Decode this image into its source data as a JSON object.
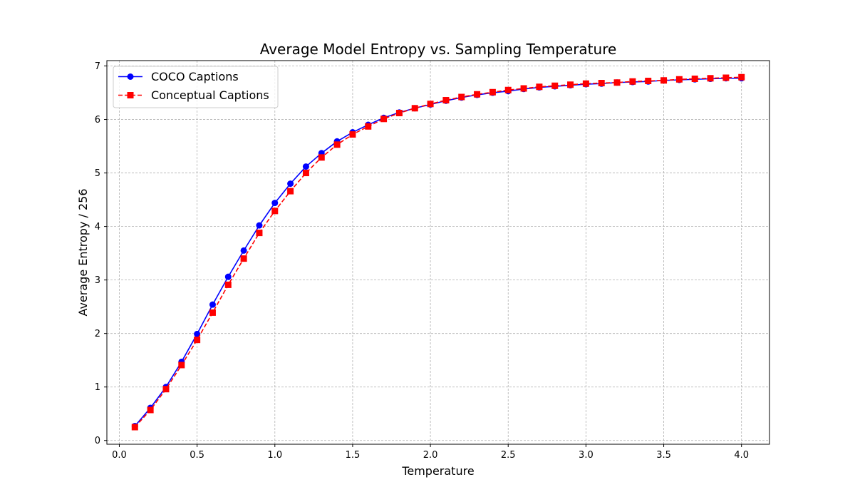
{
  "chart_data": {
    "type": "line",
    "title": "Average Model Entropy vs. Sampling Temperature",
    "xlabel": "Temperature",
    "ylabel": "Average Entropy / 256",
    "xlim": [
      -0.08,
      4.18
    ],
    "ylim": [
      -0.07,
      7.1
    ],
    "xticks": [
      0.0,
      0.5,
      1.0,
      1.5,
      2.0,
      2.5,
      3.0,
      3.5,
      4.0
    ],
    "xtick_labels": [
      "0.0",
      "0.5",
      "1.0",
      "1.5",
      "2.0",
      "2.5",
      "3.0",
      "3.5",
      "4.0"
    ],
    "yticks": [
      0,
      1,
      2,
      3,
      4,
      5,
      6,
      7
    ],
    "ytick_labels": [
      "0",
      "1",
      "2",
      "3",
      "4",
      "5",
      "6",
      "7"
    ],
    "grid": true,
    "legend_position": "upper-left",
    "x": [
      0.1,
      0.2,
      0.3,
      0.4,
      0.5,
      0.6,
      0.7,
      0.8,
      0.9,
      1.0,
      1.1,
      1.2,
      1.3,
      1.4,
      1.5,
      1.6,
      1.7,
      1.8,
      1.9,
      2.0,
      2.1,
      2.2,
      2.3,
      2.4,
      2.5,
      2.6,
      2.7,
      2.8,
      2.9,
      3.0,
      3.1,
      3.2,
      3.3,
      3.4,
      3.5,
      3.6,
      3.7,
      3.8,
      3.9,
      4.0
    ],
    "series": [
      {
        "name": "COCO Captions",
        "color": "#0000ff",
        "marker": "circle",
        "line_style": "solid",
        "values": [
          0.27,
          0.61,
          1.0,
          1.47,
          1.99,
          2.54,
          3.06,
          3.55,
          4.02,
          4.44,
          4.8,
          5.12,
          5.37,
          5.59,
          5.76,
          5.9,
          6.03,
          6.13,
          6.21,
          6.28,
          6.35,
          6.41,
          6.46,
          6.5,
          6.53,
          6.57,
          6.6,
          6.62,
          6.64,
          6.66,
          6.67,
          6.69,
          6.7,
          6.71,
          6.73,
          6.74,
          6.75,
          6.76,
          6.77,
          6.77
        ]
      },
      {
        "name": "Conceptual Captions",
        "color": "#ff0000",
        "marker": "square",
        "line_style": "dashed",
        "values": [
          0.25,
          0.57,
          0.96,
          1.41,
          1.88,
          2.39,
          2.91,
          3.4,
          3.88,
          4.29,
          4.66,
          5.0,
          5.29,
          5.53,
          5.72,
          5.87,
          6.01,
          6.12,
          6.21,
          6.29,
          6.36,
          6.42,
          6.47,
          6.51,
          6.55,
          6.58,
          6.61,
          6.63,
          6.65,
          6.67,
          6.68,
          6.69,
          6.71,
          6.72,
          6.73,
          6.75,
          6.76,
          6.77,
          6.78,
          6.79
        ]
      }
    ]
  }
}
